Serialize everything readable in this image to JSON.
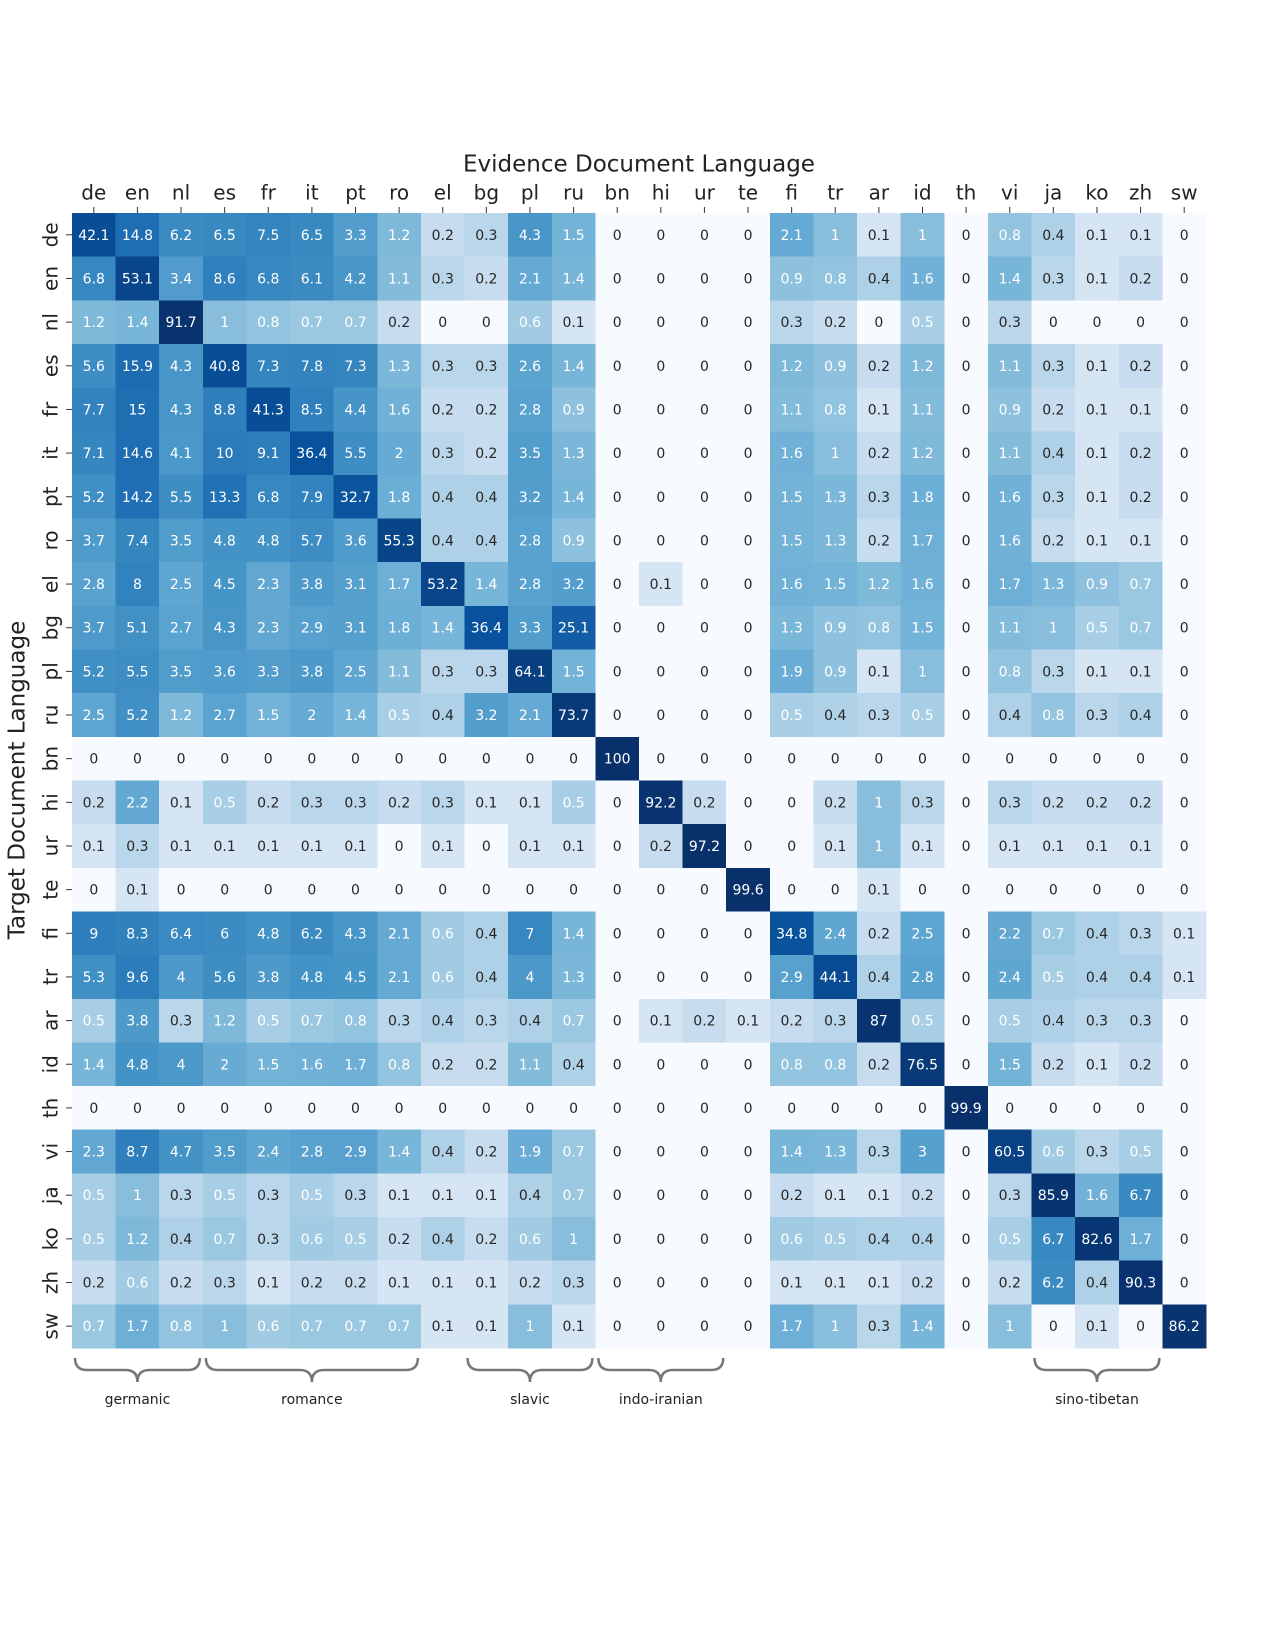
{
  "chart_data": {
    "type": "heatmap",
    "xlabel": "Evidence Document Language",
    "ylabel": "Target Document Language",
    "colormap": "Blues",
    "color_scale": "log",
    "x_categories": [
      "de",
      "en",
      "nl",
      "es",
      "fr",
      "it",
      "pt",
      "ro",
      "el",
      "bg",
      "pl",
      "ru",
      "bn",
      "hi",
      "ur",
      "te",
      "fi",
      "tr",
      "ar",
      "id",
      "th",
      "vi",
      "ja",
      "ko",
      "zh",
      "sw"
    ],
    "y_categories": [
      "de",
      "en",
      "nl",
      "es",
      "fr",
      "it",
      "pt",
      "ro",
      "el",
      "bg",
      "pl",
      "ru",
      "bn",
      "hi",
      "ur",
      "te",
      "fi",
      "tr",
      "ar",
      "id",
      "th",
      "vi",
      "ja",
      "ko",
      "zh",
      "sw"
    ],
    "values": [
      [
        42.1,
        14.8,
        6.2,
        6.5,
        7.5,
        6.5,
        3.3,
        1.2,
        0.2,
        0.3,
        4.3,
        1.5,
        0,
        0,
        0,
        0,
        2.1,
        1,
        0.1,
        1,
        0,
        0.8,
        0.4,
        0.1,
        0.1,
        0
      ],
      [
        6.8,
        53.1,
        3.4,
        8.6,
        6.8,
        6.1,
        4.2,
        1.1,
        0.3,
        0.2,
        2.1,
        1.4,
        0,
        0,
        0,
        0,
        0.9,
        0.8,
        0.4,
        1.6,
        0,
        1.4,
        0.3,
        0.1,
        0.2,
        0
      ],
      [
        1.2,
        1.4,
        91.7,
        1,
        0.8,
        0.7,
        0.7,
        0.2,
        0,
        0,
        0.6,
        0.1,
        0,
        0,
        0,
        0,
        0.3,
        0.2,
        0,
        0.5,
        0,
        0.3,
        0,
        0,
        0,
        0
      ],
      [
        5.6,
        15.9,
        4.3,
        40.8,
        7.3,
        7.8,
        7.3,
        1.3,
        0.3,
        0.3,
        2.6,
        1.4,
        0,
        0,
        0,
        0,
        1.2,
        0.9,
        0.2,
        1.2,
        0,
        1.1,
        0.3,
        0.1,
        0.2,
        0
      ],
      [
        7.7,
        15,
        4.3,
        8.8,
        41.3,
        8.5,
        4.4,
        1.6,
        0.2,
        0.2,
        2.8,
        0.9,
        0,
        0,
        0,
        0,
        1.1,
        0.8,
        0.1,
        1.1,
        0,
        0.9,
        0.2,
        0.1,
        0.1,
        0
      ],
      [
        7.1,
        14.6,
        4.1,
        10,
        9.1,
        36.4,
        5.5,
        2,
        0.3,
        0.2,
        3.5,
        1.3,
        0,
        0,
        0,
        0,
        1.6,
        1,
        0.2,
        1.2,
        0,
        1.1,
        0.4,
        0.1,
        0.2,
        0
      ],
      [
        5.2,
        14.2,
        5.5,
        13.3,
        6.8,
        7.9,
        32.7,
        1.8,
        0.4,
        0.4,
        3.2,
        1.4,
        0,
        0,
        0,
        0,
        1.5,
        1.3,
        0.3,
        1.8,
        0,
        1.6,
        0.3,
        0.1,
        0.2,
        0
      ],
      [
        3.7,
        7.4,
        3.5,
        4.8,
        4.8,
        5.7,
        3.6,
        55.3,
        0.4,
        0.4,
        2.8,
        0.9,
        0,
        0,
        0,
        0,
        1.5,
        1.3,
        0.2,
        1.7,
        0,
        1.6,
        0.2,
        0.1,
        0.1,
        0
      ],
      [
        2.8,
        8,
        2.5,
        4.5,
        2.3,
        3.8,
        3.1,
        1.7,
        53.2,
        1.4,
        2.8,
        3.2,
        0,
        0.1,
        0,
        0,
        1.6,
        1.5,
        1.2,
        1.6,
        0,
        1.7,
        1.3,
        0.9,
        0.7,
        0
      ],
      [
        3.7,
        5.1,
        2.7,
        4.3,
        2.3,
        2.9,
        3.1,
        1.8,
        1.4,
        36.4,
        3.3,
        25.1,
        0,
        0,
        0,
        0,
        1.3,
        0.9,
        0.8,
        1.5,
        0,
        1.1,
        1,
        0.5,
        0.7,
        0
      ],
      [
        5.2,
        5.5,
        3.5,
        3.6,
        3.3,
        3.8,
        2.5,
        1.1,
        0.3,
        0.3,
        64.1,
        1.5,
        0,
        0,
        0,
        0,
        1.9,
        0.9,
        0.1,
        1,
        0,
        0.8,
        0.3,
        0.1,
        0.1,
        0
      ],
      [
        2.5,
        5.2,
        1.2,
        2.7,
        1.5,
        2,
        1.4,
        0.5,
        0.4,
        3.2,
        2.1,
        73.7,
        0,
        0,
        0,
        0,
        0.5,
        0.4,
        0.3,
        0.5,
        0,
        0.4,
        0.8,
        0.3,
        0.4,
        0
      ],
      [
        0,
        0,
        0,
        0,
        0,
        0,
        0,
        0,
        0,
        0,
        0,
        0,
        100,
        0,
        0,
        0,
        0,
        0,
        0,
        0,
        0,
        0,
        0,
        0,
        0,
        0
      ],
      [
        0.2,
        2.2,
        0.1,
        0.5,
        0.2,
        0.3,
        0.3,
        0.2,
        0.3,
        0.1,
        0.1,
        0.5,
        0,
        92.2,
        0.2,
        0,
        0,
        0.2,
        1,
        0.3,
        0,
        0.3,
        0.2,
        0.2,
        0.2,
        0
      ],
      [
        0.1,
        0.3,
        0.1,
        0.1,
        0.1,
        0.1,
        0.1,
        0,
        0.1,
        0,
        0.1,
        0.1,
        0,
        0.2,
        97.2,
        0,
        0,
        0.1,
        1,
        0.1,
        0,
        0.1,
        0.1,
        0.1,
        0.1,
        0
      ],
      [
        0,
        0.1,
        0,
        0,
        0,
        0,
        0,
        0,
        0,
        0,
        0,
        0,
        0,
        0,
        0,
        99.6,
        0,
        0,
        0.1,
        0,
        0,
        0,
        0,
        0,
        0,
        0
      ],
      [
        9,
        8.3,
        6.4,
        6,
        4.8,
        6.2,
        4.3,
        2.1,
        0.6,
        0.4,
        7,
        1.4,
        0,
        0,
        0,
        0,
        34.8,
        2.4,
        0.2,
        2.5,
        0,
        2.2,
        0.7,
        0.4,
        0.3,
        0.1
      ],
      [
        5.3,
        9.6,
        4,
        5.6,
        3.8,
        4.8,
        4.5,
        2.1,
        0.6,
        0.4,
        4,
        1.3,
        0,
        0,
        0,
        0,
        2.9,
        44.1,
        0.4,
        2.8,
        0,
        2.4,
        0.5,
        0.4,
        0.4,
        0.1
      ],
      [
        0.5,
        3.8,
        0.3,
        1.2,
        0.5,
        0.7,
        0.8,
        0.3,
        0.4,
        0.3,
        0.4,
        0.7,
        0,
        0.1,
        0.2,
        0.1,
        0.2,
        0.3,
        87,
        0.5,
        0,
        0.5,
        0.4,
        0.3,
        0.3,
        0
      ],
      [
        1.4,
        4.8,
        4,
        2,
        1.5,
        1.6,
        1.7,
        0.8,
        0.2,
        0.2,
        1.1,
        0.4,
        0,
        0,
        0,
        0,
        0.8,
        0.8,
        0.2,
        76.5,
        0,
        1.5,
        0.2,
        0.1,
        0.2,
        0
      ],
      [
        0,
        0,
        0,
        0,
        0,
        0,
        0,
        0,
        0,
        0,
        0,
        0,
        0,
        0,
        0,
        0,
        0,
        0,
        0,
        0,
        99.9,
        0,
        0,
        0,
        0,
        0
      ],
      [
        2.3,
        8.7,
        4.7,
        3.5,
        2.4,
        2.8,
        2.9,
        1.4,
        0.4,
        0.2,
        1.9,
        0.7,
        0,
        0,
        0,
        0,
        1.4,
        1.3,
        0.3,
        3,
        0,
        60.5,
        0.6,
        0.3,
        0.5,
        0
      ],
      [
        0.5,
        1,
        0.3,
        0.5,
        0.3,
        0.5,
        0.3,
        0.1,
        0.1,
        0.1,
        0.4,
        0.7,
        0,
        0,
        0,
        0,
        0.2,
        0.1,
        0.1,
        0.2,
        0,
        0.3,
        85.9,
        1.6,
        6.7,
        0
      ],
      [
        0.5,
        1.2,
        0.4,
        0.7,
        0.3,
        0.6,
        0.5,
        0.2,
        0.4,
        0.2,
        0.6,
        1,
        0,
        0,
        0,
        0,
        0.6,
        0.5,
        0.4,
        0.4,
        0,
        0.5,
        6.7,
        82.6,
        1.7,
        0
      ],
      [
        0.2,
        0.6,
        0.2,
        0.3,
        0.1,
        0.2,
        0.2,
        0.1,
        0.1,
        0.1,
        0.2,
        0.3,
        0,
        0,
        0,
        0,
        0.1,
        0.1,
        0.1,
        0.2,
        0,
        0.2,
        6.2,
        0.4,
        90.3,
        0
      ],
      [
        0.7,
        1.7,
        0.8,
        1,
        0.6,
        0.7,
        0.7,
        0.7,
        0.1,
        0.1,
        1,
        0.1,
        0,
        0,
        0,
        0,
        1.7,
        1,
        0.3,
        1.4,
        0,
        1,
        0,
        0.1,
        0,
        86.2
      ]
    ],
    "groups": [
      {
        "label": "germanic",
        "first": "de",
        "last": "nl"
      },
      {
        "label": "romance",
        "first": "es",
        "last": "ro"
      },
      {
        "label": "slavic",
        "first": "bg",
        "last": "ru"
      },
      {
        "label": "indo-iranian",
        "first": "bn",
        "last": "ur"
      },
      {
        "label": "sino-tibetan",
        "first": "ja",
        "last": "zh"
      }
    ]
  }
}
